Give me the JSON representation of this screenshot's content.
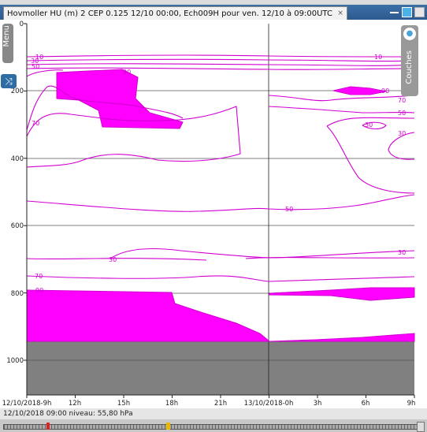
{
  "window": {
    "title": "Hovmoller HU (m) 2 CEP 0.125 12/10 00:00, Ech009H pour ven. 12/10 à 09:00UTC",
    "close_glyph": "×"
  },
  "side_panels": {
    "menu_label": "Menu",
    "layers_label": "Couches"
  },
  "status": {
    "text": "12/10/2018 09:00 niveau:  55,80 hPa"
  },
  "chart_data": {
    "type": "hovmoller-contour",
    "x_tick_labels": [
      "12/10/2018-9h",
      "12h",
      "15h",
      "18h",
      "21h",
      "13/10/2018-0h",
      "3h",
      "6h",
      "9h"
    ],
    "y_tick_labels": [
      "0",
      "200",
      "400",
      "600",
      "800",
      "1000"
    ],
    "y_ticks": [
      0,
      200,
      400,
      600,
      800,
      1000
    ],
    "ylim": [
      0,
      1000
    ],
    "y_inverted": true,
    "contour_labels": [
      {
        "text": "10"
      },
      {
        "text": "30"
      },
      {
        "text": "50"
      },
      {
        "text": "90"
      },
      {
        "text": "70"
      },
      {
        "text": "10"
      },
      {
        "text": "90"
      },
      {
        "text": "70"
      },
      {
        "text": "50"
      },
      {
        "text": "30"
      },
      {
        "text": "30"
      },
      {
        "text": "50"
      },
      {
        "text": "30"
      },
      {
        "text": "30"
      },
      {
        "text": "70"
      },
      {
        "text": "90"
      }
    ],
    "fill_color": "#ff00ff",
    "line_color": "#d000d0",
    "below_ground_color": "#808080",
    "grid": true
  }
}
